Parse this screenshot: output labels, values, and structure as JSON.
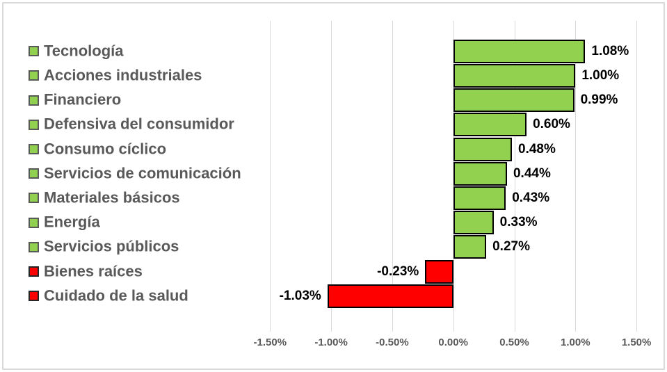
{
  "chart_data": {
    "type": "bar",
    "orientation": "horizontal",
    "title": "",
    "categories": [
      "Tecnología",
      "Acciones industriales",
      "Financiero",
      "Defensiva del consumidor",
      "Consumo cíclico",
      "Servicios de comunicación",
      "Materiales básicos",
      "Energía",
      "Servicios públicos",
      "Bienes raíces",
      "Cuidado de la salud"
    ],
    "values": [
      1.08,
      1.0,
      0.99,
      0.6,
      0.48,
      0.44,
      0.43,
      0.33,
      0.27,
      -0.23,
      -1.03
    ],
    "value_labels": [
      "1.08%",
      "1.00%",
      "0.99%",
      "0.60%",
      "0.48%",
      "0.44%",
      "0.43%",
      "0.33%",
      "0.27%",
      "-0.23%",
      "-1.03%"
    ],
    "x_ticks": {
      "labels": [
        "-1.50%",
        "-1.00%",
        "-0.50%",
        "0.00%",
        "0.50%",
        "1.00%",
        "1.50%"
      ],
      "values": [
        -1.5,
        -1.0,
        -0.5,
        0.0,
        0.5,
        1.0,
        1.5
      ]
    },
    "xlim": [
      -1.5,
      1.5
    ],
    "grid": true,
    "legend_position": "left",
    "colors": {
      "positive_bar": "#92d050",
      "negative_bar": "#ff0000",
      "bar_border": "#000000",
      "positive_swatch_border": "#595959",
      "negative_swatch_border": "#262626",
      "gridline": "#d9d9d9",
      "frame_border": "#d9d9d9",
      "category_text": "#595959",
      "axis_text": "#595959",
      "value_text": "#000000",
      "background": "#ffffff"
    }
  }
}
